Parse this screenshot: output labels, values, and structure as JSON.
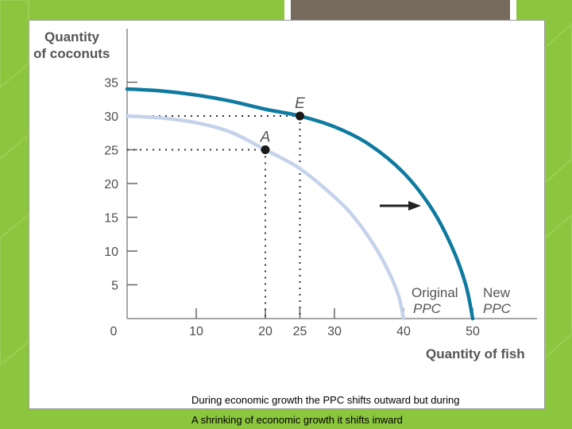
{
  "colors": {
    "background": "#8cc63f",
    "original_curve": "#c5d3ea",
    "new_curve": "#0f7aa0",
    "point": "#1a1a1a",
    "text": "#555555"
  },
  "chart_data": {
    "type": "line",
    "title": "",
    "xlabel": "Quantity of fish",
    "ylabel": "Quantity of coconuts",
    "xlim": [
      0,
      60
    ],
    "ylim": [
      0,
      35
    ],
    "x_ticks": [
      0,
      10,
      20,
      25,
      30,
      40,
      50
    ],
    "y_ticks": [
      5,
      10,
      15,
      20,
      25,
      30,
      35
    ],
    "series": [
      {
        "name": "Original PPC",
        "points": [
          [
            0,
            30
          ],
          [
            5,
            29.7
          ],
          [
            10,
            29
          ],
          [
            15,
            27.6
          ],
          [
            20,
            25
          ],
          [
            25,
            22.2
          ],
          [
            30,
            18
          ],
          [
            33,
            14.8
          ],
          [
            36,
            10.4
          ],
          [
            38,
            6.6
          ],
          [
            39.3,
            3.3
          ],
          [
            40,
            0
          ]
        ]
      },
      {
        "name": "New PPC",
        "points": [
          [
            0,
            34
          ],
          [
            5,
            33.7
          ],
          [
            10,
            33.1
          ],
          [
            15,
            32.2
          ],
          [
            20,
            31
          ],
          [
            25,
            30
          ],
          [
            30,
            28.4
          ],
          [
            35,
            25.8
          ],
          [
            40,
            21.6
          ],
          [
            44,
            16.4
          ],
          [
            47,
            10.6
          ],
          [
            49,
            5
          ],
          [
            50,
            0
          ]
        ]
      }
    ],
    "points": [
      {
        "label": "A",
        "x": 20,
        "y": 25
      },
      {
        "label": "E",
        "x": 25,
        "y": 30
      }
    ],
    "annotations": [
      "Original",
      "PPC",
      "New",
      "PPC"
    ]
  },
  "caption": {
    "line1": "During economic growth the PPC shifts outward but during",
    "line2": "A shrinking of economic growth it shifts inward"
  }
}
